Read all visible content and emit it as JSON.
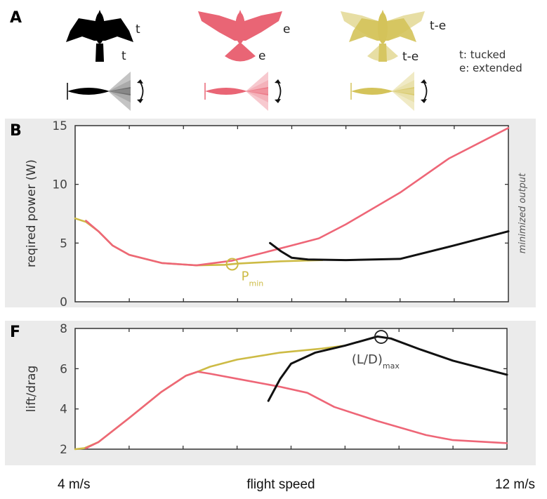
{
  "panels": {
    "a": {
      "letter": "A",
      "birds": [
        {
          "name": "tucked",
          "color": "#000000",
          "wing_label": "t",
          "tail_label": "t"
        },
        {
          "name": "extended",
          "color": "#e96575",
          "wing_label": "e",
          "tail_label": "e"
        },
        {
          "name": "tucked-extended",
          "color": "#d4c35a",
          "wing_label": "t-e",
          "tail_label": "t-e"
        }
      ],
      "legend": [
        "t: tucked",
        "e: extended"
      ]
    },
    "b": {
      "letter": "B"
    },
    "f": {
      "letter": "F"
    }
  },
  "x_axis": {
    "left_label": "4 m/s",
    "center_label": "flight speed",
    "right_label": "12 m/s"
  },
  "side_label": "minimized output",
  "colors": {
    "tucked": "#111111",
    "extended": "#ee6677",
    "tucked_extended": "#cdbb45",
    "panel_bg": "#ebebeb"
  },
  "chart_data": [
    {
      "type": "line",
      "panel": "B",
      "title": "",
      "xlabel": "flight speed",
      "ylabel": "reqired power (W)",
      "xlim": [
        4,
        12
      ],
      "ylim": [
        0,
        15
      ],
      "yticks": [
        "0",
        "5",
        "10",
        "15"
      ],
      "xticks": [
        4,
        5,
        6,
        7,
        8,
        9,
        10,
        11,
        12
      ],
      "series": [
        {
          "name": "t-e",
          "color_key": "tucked_extended",
          "x": [
            4.0,
            4.2,
            4.43,
            4.69,
            5.0,
            5.6,
            6.24,
            6.76,
            7.0,
            7.8,
            8.57
          ],
          "y": [
            7.1,
            6.8,
            6.0,
            4.8,
            4.0,
            3.3,
            3.1,
            3.15,
            3.25,
            3.45,
            3.55
          ]
        },
        {
          "name": "e",
          "color_key": "extended",
          "x": [
            4.2,
            4.43,
            4.69,
            5.0,
            5.6,
            6.24,
            6.9,
            7.5,
            8.0,
            8.5,
            9.0,
            10.0,
            10.9,
            12.0
          ],
          "y": [
            6.9,
            6.0,
            4.8,
            4.0,
            3.3,
            3.1,
            3.5,
            4.2,
            4.8,
            5.4,
            6.6,
            9.3,
            12.2,
            14.8
          ]
        },
        {
          "name": "t",
          "color_key": "tucked",
          "x": [
            7.6,
            7.8,
            8.0,
            8.3,
            9.0,
            10.0,
            11.0,
            12.0
          ],
          "y": [
            5.0,
            4.3,
            3.75,
            3.6,
            3.55,
            3.65,
            4.8,
            6.0
          ]
        }
      ],
      "annotations": [
        {
          "text": "P",
          "subscript": "min",
          "x": 6.9,
          "y": 3.2,
          "color_key": "tucked_extended"
        }
      ]
    },
    {
      "type": "line",
      "panel": "F",
      "title": "",
      "xlabel": "flight speed",
      "ylabel": "lift/drag",
      "xlim": [
        4,
        12
      ],
      "ylim": [
        2,
        8
      ],
      "yticks": [
        "2",
        "4",
        "6",
        "8"
      ],
      "xticks": [
        4,
        5,
        6,
        7,
        8,
        9,
        10,
        11,
        12
      ],
      "series": [
        {
          "name": "t-e",
          "color_key": "tucked_extended",
          "x": [
            4.0,
            4.17,
            4.43,
            5.0,
            5.6,
            6.05,
            6.27,
            6.5,
            7.0,
            7.8,
            8.57,
            9.0
          ],
          "y": [
            2.0,
            2.05,
            2.35,
            3.55,
            4.85,
            5.65,
            5.85,
            6.1,
            6.45,
            6.8,
            7.0,
            7.15
          ]
        },
        {
          "name": "e",
          "color_key": "extended",
          "x": [
            4.2,
            4.43,
            5.0,
            5.6,
            6.05,
            6.27,
            6.5,
            7.0,
            7.8,
            8.3,
            8.8,
            9.6,
            10.5,
            11.0,
            12.0
          ],
          "y": [
            2.05,
            2.35,
            3.55,
            4.85,
            5.65,
            5.85,
            5.75,
            5.5,
            5.1,
            4.8,
            4.1,
            3.4,
            2.7,
            2.45,
            2.3
          ]
        },
        {
          "name": "t",
          "color_key": "tucked",
          "x": [
            7.58,
            7.8,
            8.0,
            8.45,
            9.0,
            9.6,
            9.85,
            10.4,
            11.0,
            12.0
          ],
          "y": [
            4.4,
            5.5,
            6.25,
            6.8,
            7.15,
            7.6,
            7.5,
            6.95,
            6.4,
            5.7
          ]
        }
      ],
      "annotations": [
        {
          "text": "(L/D)",
          "subscript": "max",
          "x": 9.67,
          "y": 7.58,
          "color_key": "tucked"
        }
      ]
    }
  ]
}
